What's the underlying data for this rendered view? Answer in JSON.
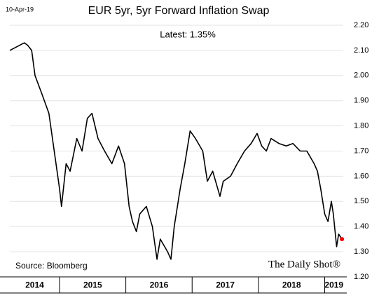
{
  "chart_data": {
    "type": "line",
    "date_stamp": "10-Apr-19",
    "title": "EUR 5yr, 5yr Forward Inflation Swap",
    "annotation": "Latest:  1.35%",
    "source": "Source: Bloomberg",
    "brand": "The Daily Shot®",
    "categories": [
      "2014",
      "2015",
      "2016",
      "2017",
      "2018",
      "2019"
    ],
    "xticks": [
      2015,
      2016,
      2017,
      2018,
      2019
    ],
    "xlim": [
      2014.25,
      2019.28
    ],
    "ylim": [
      1.2,
      2.2
    ],
    "yticks": [
      {
        "value": 1.2,
        "label": "1.20"
      },
      {
        "value": 1.3,
        "label": "1.30"
      },
      {
        "value": 1.4,
        "label": "1.40"
      },
      {
        "value": 1.5,
        "label": "1.50"
      },
      {
        "value": 1.6,
        "label": "1.60"
      },
      {
        "value": 1.7,
        "label": "1.70"
      },
      {
        "value": 1.8,
        "label": "1.80"
      },
      {
        "value": 1.9,
        "label": "1.90"
      },
      {
        "value": 2.0,
        "label": "2.00"
      },
      {
        "value": 2.1,
        "label": "2.10"
      },
      {
        "value": 2.2,
        "label": "2.20"
      }
    ],
    "grid": true,
    "series": [
      {
        "name": "EUR 5y5y",
        "color": "#000000",
        "x": [
          2014.25,
          2014.47,
          2014.52,
          2014.58,
          2014.63,
          2014.73,
          2014.84,
          2014.92,
          2015.0,
          2015.03,
          2015.1,
          2015.16,
          2015.26,
          2015.34,
          2015.42,
          2015.49,
          2015.58,
          2015.68,
          2015.79,
          2015.89,
          2015.98,
          2016.05,
          2016.1,
          2016.16,
          2016.21,
          2016.31,
          2016.4,
          2016.47,
          2016.52,
          2016.63,
          2016.68,
          2016.73,
          2016.82,
          2016.89,
          2016.97,
          2017.05,
          2017.16,
          2017.23,
          2017.31,
          2017.42,
          2017.47,
          2017.58,
          2017.68,
          2017.79,
          2017.89,
          2017.98,
          2018.05,
          2018.12,
          2018.19,
          2018.31,
          2018.42,
          2018.52,
          2018.63,
          2018.73,
          2018.84,
          2018.89,
          2018.94,
          2019.0,
          2019.05,
          2019.1,
          2019.13,
          2019.18,
          2019.21,
          2019.26
        ],
        "values": [
          2.1,
          2.13,
          2.12,
          2.1,
          2.0,
          1.93,
          1.85,
          1.7,
          1.55,
          1.48,
          1.65,
          1.62,
          1.75,
          1.7,
          1.83,
          1.85,
          1.75,
          1.7,
          1.65,
          1.72,
          1.65,
          1.48,
          1.42,
          1.38,
          1.45,
          1.48,
          1.4,
          1.27,
          1.35,
          1.3,
          1.27,
          1.4,
          1.55,
          1.65,
          1.78,
          1.75,
          1.7,
          1.58,
          1.62,
          1.52,
          1.58,
          1.6,
          1.65,
          1.7,
          1.73,
          1.77,
          1.72,
          1.7,
          1.75,
          1.73,
          1.72,
          1.73,
          1.7,
          1.7,
          1.65,
          1.62,
          1.55,
          1.45,
          1.42,
          1.5,
          1.45,
          1.32,
          1.37,
          1.35
        ]
      }
    ],
    "latest": {
      "x": 2019.26,
      "value": 1.35,
      "color": "#ff0000"
    }
  }
}
